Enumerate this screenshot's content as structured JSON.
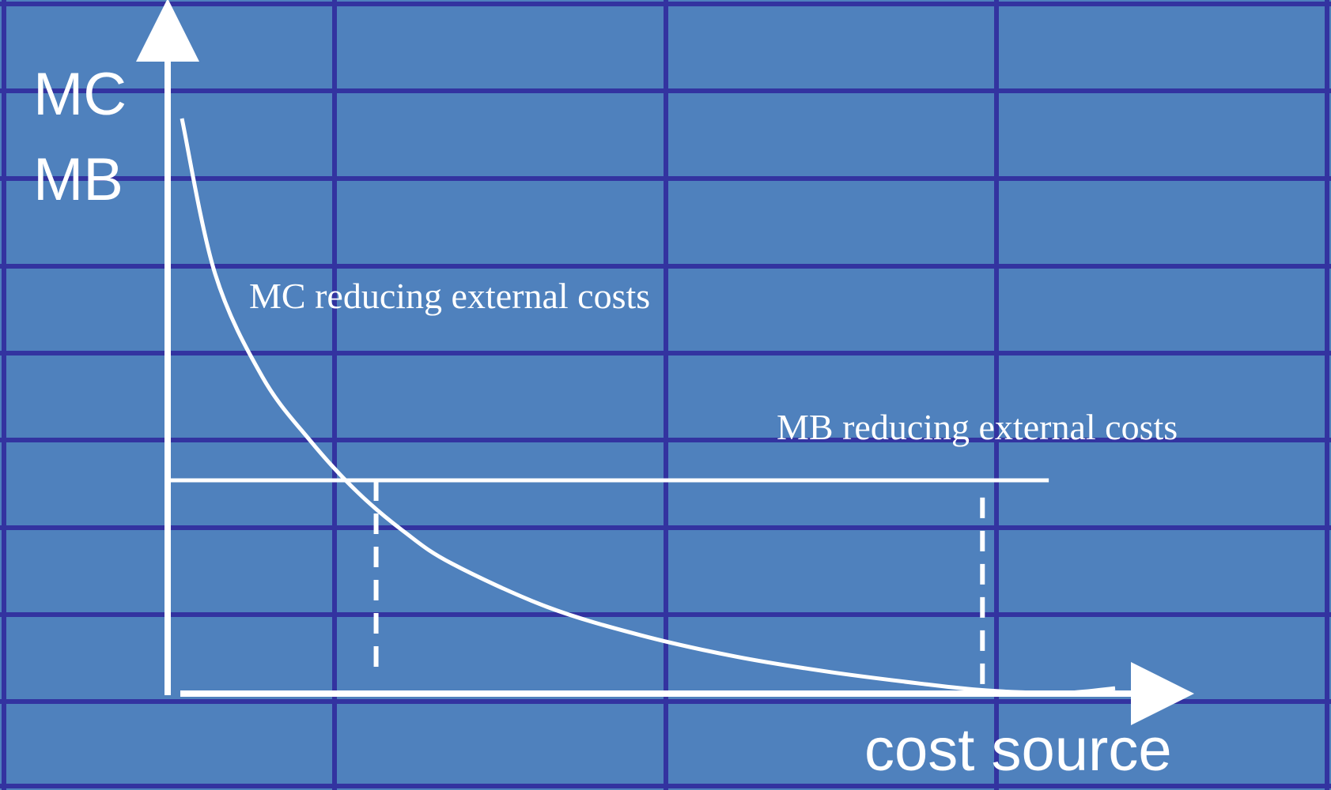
{
  "colors": {
    "background": "#4f81bd",
    "grid": "#3333a0",
    "foreground": "#ffffff"
  },
  "chart_data": {
    "type": "line",
    "title": "",
    "ylabel_lines": [
      "MC",
      "MB"
    ],
    "xlabel": "cost source",
    "grid": true,
    "xlim": [
      0,
      100
    ],
    "ylim": [
      0,
      100
    ],
    "series": [
      {
        "label": "MC reducing external costs",
        "shape": "decreasing-convex",
        "x": [
          1.5,
          5,
          10,
          15,
          20,
          25,
          30,
          40,
          50,
          60,
          70,
          80,
          85,
          90,
          95,
          100
        ],
        "y": [
          100,
          73,
          55,
          44,
          35,
          28,
          22.5,
          15,
          10,
          6.3,
          3.6,
          1.5,
          0.6,
          0.1,
          0.0,
          0.8
        ]
      },
      {
        "label": "MB reducing external costs",
        "shape": "horizontal",
        "x": [
          0,
          93
        ],
        "y": [
          37,
          37
        ]
      }
    ],
    "guides": [
      {
        "kind": "dashed-vertical",
        "x": 22,
        "y_from": 37,
        "y_to": 3
      },
      {
        "kind": "dashed-vertical",
        "x": 86,
        "y_from": 34,
        "y_to": 0
      }
    ]
  }
}
